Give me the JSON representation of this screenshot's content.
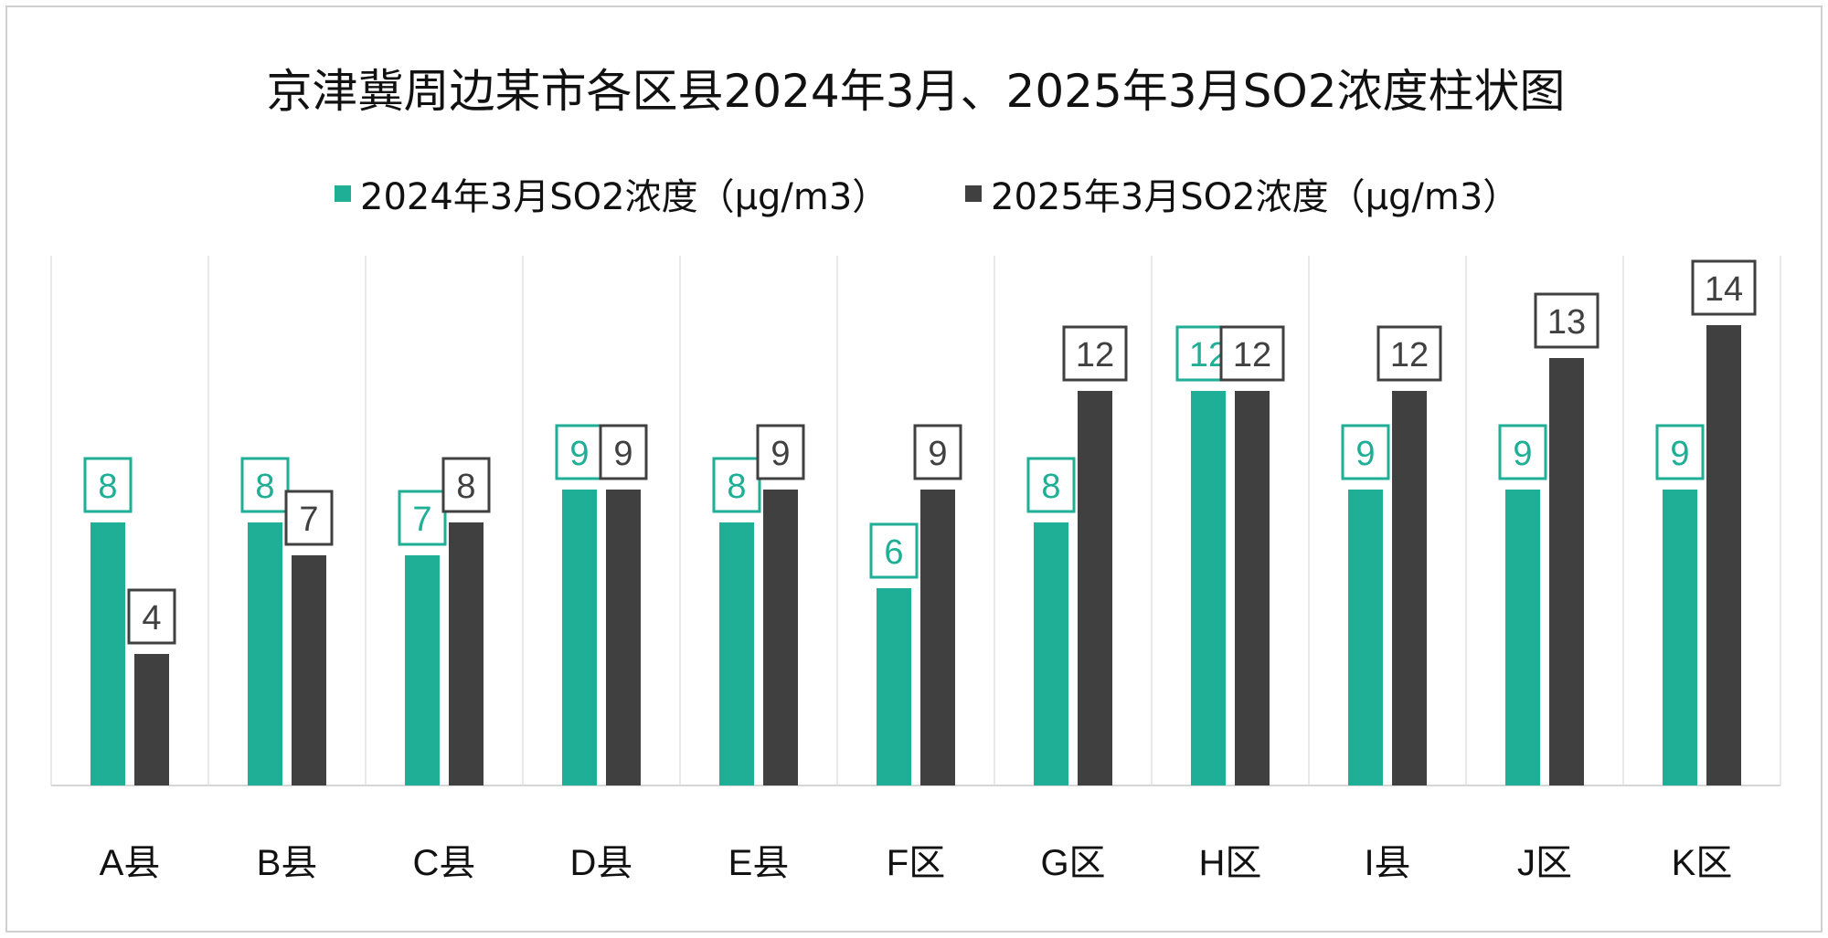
{
  "chart_data": {
    "type": "bar",
    "title": "京津冀周边某市各区县2024年3月、2025年3月SO2浓度柱状图",
    "categories": [
      "A县",
      "B县",
      "C县",
      "D县",
      "E县",
      "F区",
      "G区",
      "H区",
      "I县",
      "J区",
      "K区"
    ],
    "series": [
      {
        "name": "2024年3月SO2浓度（μg/m3）",
        "color": "#1fae96",
        "values": [
          8,
          8,
          7,
          9,
          8,
          6,
          8,
          12,
          9,
          9,
          9
        ]
      },
      {
        "name": "2025年3月SO2浓度（μg/m3）",
        "color": "#404040",
        "values": [
          4,
          7,
          8,
          9,
          9,
          9,
          12,
          12,
          12,
          13,
          14
        ]
      }
    ],
    "xlabel": "",
    "ylabel": "",
    "ylim": [
      0,
      16
    ],
    "grid": "vertical category separators",
    "legend": "top-center"
  }
}
